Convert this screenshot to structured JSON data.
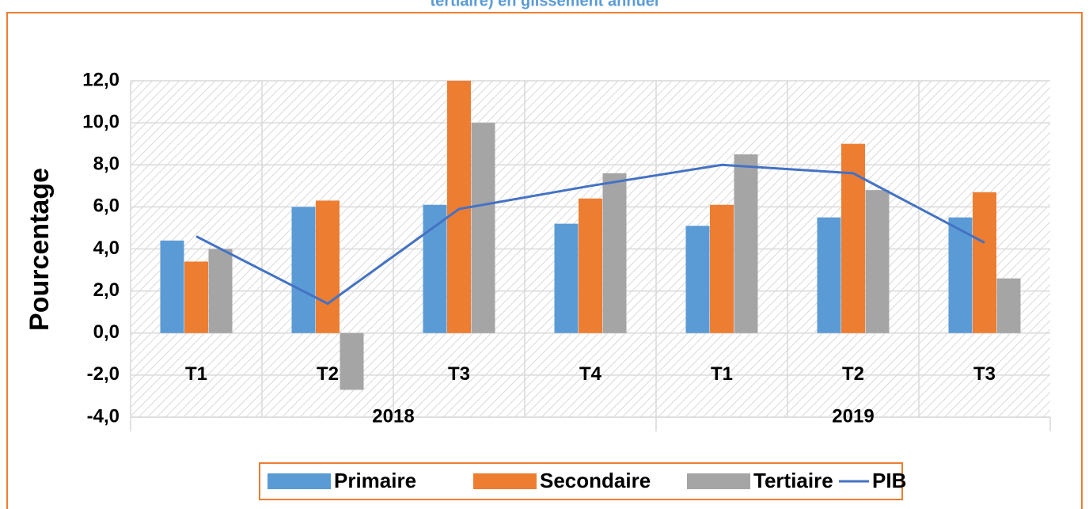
{
  "chart_data": {
    "type": "bar",
    "title": "tertiaire) en glissement annuel",
    "y_label": "Pourcentage",
    "categories": [
      "T1",
      "T2",
      "T3",
      "T4",
      "T1",
      "T2",
      "T3"
    ],
    "groups": [
      {
        "label": "2018",
        "count": 4
      },
      {
        "label": "2019",
        "count": 3
      }
    ],
    "series": [
      {
        "name": "Primaire",
        "color": "#5b9bd5",
        "values": [
          4.4,
          6.0,
          6.1,
          5.2,
          5.1,
          5.5,
          5.5
        ]
      },
      {
        "name": "Secondaire",
        "color": "#ed7d31",
        "values": [
          3.4,
          6.3,
          12.0,
          6.4,
          6.1,
          9.0,
          6.7
        ]
      },
      {
        "name": "Tertiaire",
        "color": "#a5a5a5",
        "values": [
          4.0,
          -2.7,
          10.0,
          7.6,
          8.5,
          6.8,
          2.6
        ]
      },
      {
        "name": "PIB",
        "color": "#4472c4",
        "type": "line",
        "values": [
          4.6,
          1.4,
          5.9,
          7.0,
          8.0,
          7.6,
          4.3
        ]
      }
    ],
    "ylim": [
      -4,
      12
    ],
    "yticks": [
      {
        "value": -4,
        "label": "-4,0"
      },
      {
        "value": -2,
        "label": "-2,0"
      },
      {
        "value": 0,
        "label": "0,0"
      },
      {
        "value": 2,
        "label": "2,0"
      },
      {
        "value": 4,
        "label": "4,0"
      },
      {
        "value": 6,
        "label": "6,0"
      },
      {
        "value": 8,
        "label": "8,0"
      },
      {
        "value": 10,
        "label": "10,0"
      },
      {
        "value": 12,
        "label": "12,0"
      }
    ],
    "grid": true,
    "legend": "bottom"
  }
}
